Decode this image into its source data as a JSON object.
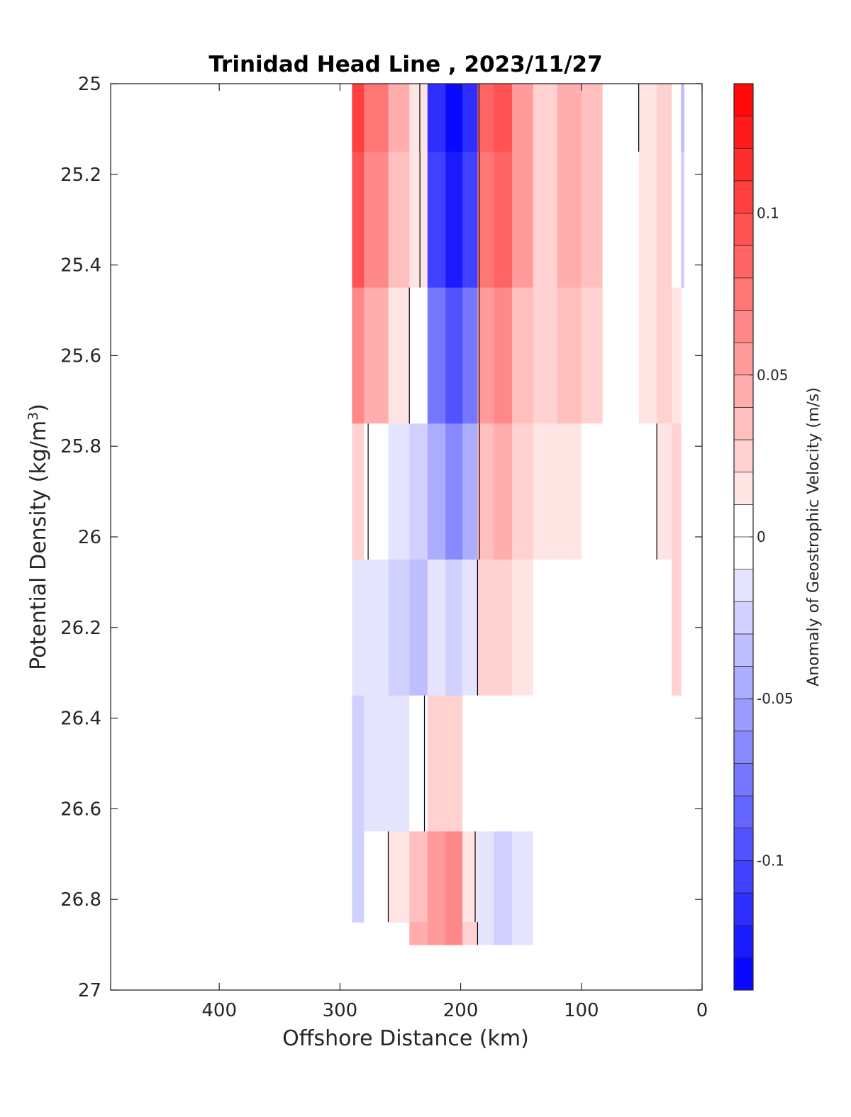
{
  "chart_data": {
    "type": "contour",
    "title": "Trinidad Head Line , 2023/11/27",
    "xlabel": "Offshore Distance (km)",
    "ylabel": "Potential Density (kg/m^3)",
    "ylabel_parts": {
      "main": "Potential Density (kg/m",
      "sup": "3",
      "close": ")"
    },
    "x_reversed": true,
    "xlim": [
      0,
      490
    ],
    "ylim": [
      25,
      27
    ],
    "y_reversed": true,
    "x_ticks": [
      400,
      300,
      200,
      100,
      0
    ],
    "x_tick_labels": [
      "400",
      "300",
      "200",
      "100",
      "0"
    ],
    "y_ticks": [
      25,
      25.2,
      25.4,
      25.6,
      25.8,
      26,
      26.2,
      26.4,
      26.6,
      26.8,
      27
    ],
    "y_tick_labels": [
      "25",
      "25.2",
      "25.4",
      "25.6",
      "25.8",
      "26",
      "26.2",
      "26.4",
      "26.6",
      "26.8",
      "27"
    ],
    "colorbar": {
      "label": "Anomaly of Geostrophic Velocity (m/s)",
      "range": [
        -0.14,
        0.14
      ],
      "ticks": [
        0.1,
        0.05,
        0,
        -0.05,
        -0.1
      ],
      "tick_labels": [
        "0.1",
        "0.05",
        "0",
        "-0.05",
        "-0.1"
      ],
      "levels": 28,
      "colors": {
        "positive": "#ff0000",
        "zero": "#ffffff",
        "negative": "#0000ff"
      }
    },
    "x": [
      290,
      270,
      250,
      235,
      220,
      205,
      192,
      180,
      165,
      150,
      130,
      110,
      90,
      75,
      60,
      45,
      30,
      20,
      15
    ],
    "y": [
      25,
      25.3,
      25.6,
      25.9,
      26.2,
      26.5,
      26.8,
      26.9
    ],
    "values": [
      [
        0.1,
        0.07,
        0.04,
        0.01,
        -0.12,
        -0.14,
        -0.12,
        0.08,
        0.09,
        0.05,
        0.02,
        0.04,
        0.03,
        0.0,
        -0.01,
        0.01,
        0.02,
        0.0,
        -0.04
      ],
      [
        0.09,
        0.06,
        0.03,
        0.01,
        -0.11,
        -0.13,
        -0.11,
        0.07,
        0.08,
        0.05,
        0.02,
        0.04,
        0.03,
        0.0,
        0.0,
        0.01,
        0.02,
        0.0,
        -0.03
      ],
      [
        0.06,
        0.04,
        0.01,
        -0.01,
        -0.08,
        -0.1,
        -0.08,
        0.05,
        0.06,
        0.03,
        0.02,
        0.03,
        0.02,
        0.0,
        0.0,
        0.01,
        0.02,
        0.01,
        null
      ],
      [
        0.02,
        -0.01,
        -0.02,
        -0.03,
        -0.05,
        -0.07,
        -0.05,
        0.03,
        0.04,
        0.02,
        0.01,
        0.01,
        0.0,
        0.0,
        0.0,
        -0.01,
        0.01,
        0.02,
        null
      ],
      [
        -0.02,
        -0.02,
        -0.03,
        -0.04,
        -0.02,
        -0.03,
        -0.02,
        0.02,
        0.02,
        0.01,
        0.0,
        -0.01,
        -0.01,
        0.0,
        -0.01,
        -0.01,
        0.0,
        0.02,
        null
      ],
      [
        -0.03,
        -0.02,
        -0.02,
        -0.01,
        0.02,
        0.02,
        0.0,
        -0.01,
        -0.01,
        -0.01,
        0.0,
        -0.01,
        -0.01,
        0.0,
        -0.01,
        -0.01,
        -0.01,
        0.0,
        null
      ],
      [
        -0.03,
        -0.01,
        0.01,
        0.03,
        0.05,
        0.06,
        0.01,
        -0.02,
        -0.03,
        -0.02,
        0.0,
        0.0,
        -0.01,
        0.0,
        0.0,
        0.0,
        -0.01,
        null,
        null
      ],
      [
        null,
        null,
        null,
        0.04,
        0.05,
        0.06,
        0.02,
        -0.02,
        -0.03,
        -0.02,
        0.0,
        0.0,
        null,
        null,
        null,
        null,
        null,
        null,
        null
      ]
    ]
  }
}
